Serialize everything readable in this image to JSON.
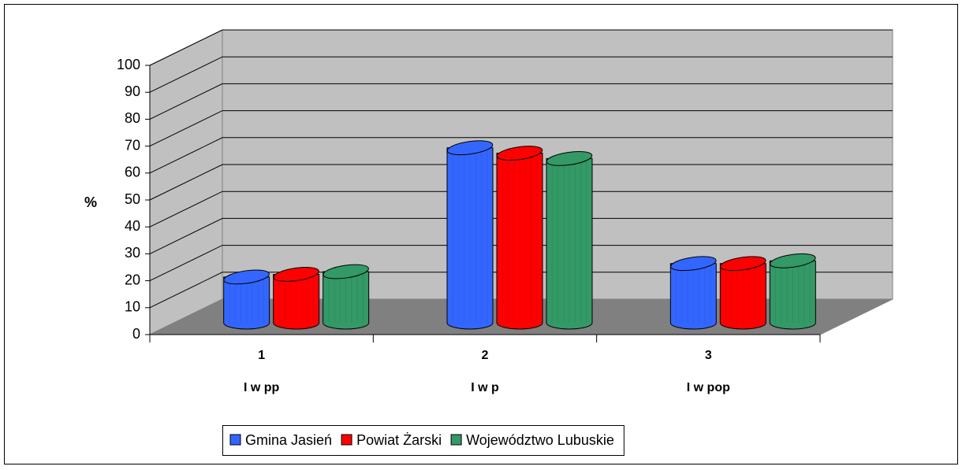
{
  "chart_data": {
    "type": "bar3d",
    "y_label": "%",
    "categories": [
      "1",
      "2",
      "3"
    ],
    "category_labels": [
      "I w pp",
      "I w p",
      "I w pop"
    ],
    "series": [
      {
        "name": "Gmina Jasień",
        "color": "#3366ff",
        "values": [
          17,
          65,
          22
        ]
      },
      {
        "name": "Powiat Żarski",
        "color": "#ff0000",
        "values": [
          18,
          63,
          22
        ]
      },
      {
        "name": "Województwo Lubuskie",
        "color": "#339966",
        "values": [
          19,
          61,
          23
        ]
      }
    ],
    "ylim": [
      0,
      100
    ],
    "yticks": [
      0,
      10,
      20,
      30,
      40,
      50,
      60,
      70,
      80,
      90,
      100
    ],
    "grid": true,
    "legend": "bottom"
  }
}
